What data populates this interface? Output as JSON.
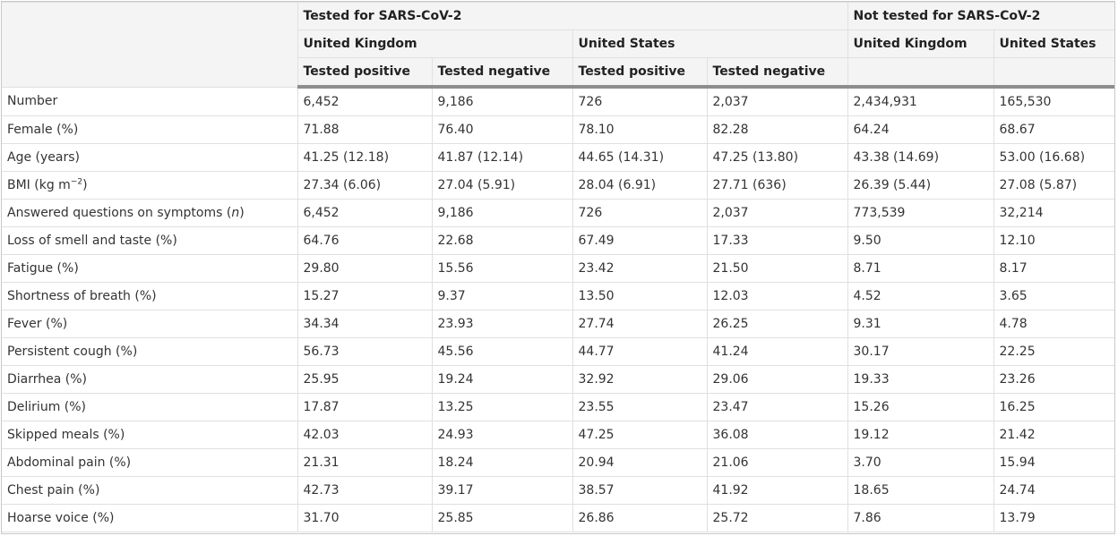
{
  "header": {
    "tested_group": "Tested for SARS-CoV-2",
    "not_tested_group": "Not tested for SARS-CoV-2",
    "tested_uk": "United Kingdom",
    "tested_us": "United States",
    "not_tested_uk": "United Kingdom",
    "not_tested_us": "United States",
    "uk_pos": "Tested positive",
    "uk_neg": "Tested negative",
    "us_pos": "Tested positive",
    "us_neg": "Tested negative"
  },
  "rows": [
    {
      "label": "Number",
      "v": [
        "6,452",
        "9,186",
        "726",
        "2,037",
        "2,434,931",
        "165,530"
      ]
    },
    {
      "label": "Female (%)",
      "v": [
        "71.88",
        "76.40",
        "78.10",
        "82.28",
        "64.24",
        "68.67"
      ]
    },
    {
      "label": "Age (years)",
      "v": [
        "41.25 (12.18)",
        "41.87 (12.14)",
        "44.65 (14.31)",
        "47.25 (13.80)",
        "43.38 (14.69)",
        "53.00 (16.68)"
      ]
    },
    {
      "label": "BMI (kg m",
      "label_sup": "−2",
      "label_end": ")",
      "v": [
        "27.34 (6.06)",
        "27.04 (5.91)",
        "28.04 (6.91)",
        "27.71 (636)",
        "26.39 (5.44)",
        "27.08 (5.87)"
      ]
    },
    {
      "label": "Answered questions on symptoms (",
      "label_italic": "n",
      "label_end": ")",
      "v": [
        "6,452",
        "9,186",
        "726",
        "2,037",
        "773,539",
        "32,214"
      ]
    },
    {
      "label": "Loss of smell and taste (%)",
      "v": [
        "64.76",
        "22.68",
        "67.49",
        "17.33",
        "9.50",
        "12.10"
      ]
    },
    {
      "label": "Fatigue (%)",
      "v": [
        "29.80",
        "15.56",
        "23.42",
        "21.50",
        "8.71",
        "8.17"
      ]
    },
    {
      "label": "Shortness of breath (%)",
      "v": [
        "15.27",
        "9.37",
        "13.50",
        "12.03",
        "4.52",
        "3.65"
      ]
    },
    {
      "label": "Fever (%)",
      "v": [
        "34.34",
        "23.93",
        "27.74",
        "26.25",
        "9.31",
        "4.78"
      ]
    },
    {
      "label": "Persistent cough (%)",
      "v": [
        "56.73",
        "45.56",
        "44.77",
        "41.24",
        "30.17",
        "22.25"
      ]
    },
    {
      "label": "Diarrhea (%)",
      "v": [
        "25.95",
        "19.24",
        "32.92",
        "29.06",
        "19.33",
        "23.26"
      ]
    },
    {
      "label": "Delirium (%)",
      "v": [
        "17.87",
        "13.25",
        "23.55",
        "23.47",
        "15.26",
        "16.25"
      ]
    },
    {
      "label": "Skipped meals (%)",
      "v": [
        "42.03",
        "24.93",
        "47.25",
        "36.08",
        "19.12",
        "21.42"
      ]
    },
    {
      "label": "Abdominal pain (%)",
      "v": [
        "21.31",
        "18.24",
        "20.94",
        "21.06",
        "3.70",
        "15.94"
      ]
    },
    {
      "label": "Chest pain (%)",
      "v": [
        "42.73",
        "39.17",
        "38.57",
        "41.92",
        "18.65",
        "24.74"
      ]
    },
    {
      "label": "Hoarse voice (%)",
      "v": [
        "31.70",
        "25.85",
        "26.86",
        "25.72",
        "7.86",
        "13.79"
      ]
    }
  ]
}
